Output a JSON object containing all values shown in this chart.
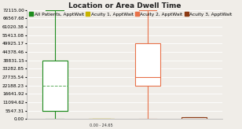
{
  "title": "Location or Area Dwell Time",
  "ylim": [
    0,
    72115.0
  ],
  "yticks": [
    0.0,
    5547.31,
    11094.62,
    16641.92,
    22188.23,
    27735.54,
    33282.85,
    38831.15,
    44378.46,
    49925.17,
    55413.08,
    61020.38,
    66567.68,
    72115.0
  ],
  "ytick_labels": [
    "0.00",
    "5547.31",
    "11094.62",
    "16641.92",
    "22188.23",
    "27735.54",
    "33282.85",
    "38831.15",
    "44378.46",
    "49925.17",
    "55413.08",
    "61020.38",
    "66567.68",
    "72115.00"
  ],
  "box_data": [
    {
      "label": "All Patients, ApptWait",
      "color": "#1e8c1e",
      "whislo": 0.0,
      "q1": 5547.31,
      "med": 5547.31,
      "q3": 38831.15,
      "whishi": 72115.0,
      "mean": 22188.23,
      "x": 1
    },
    {
      "label": "Acuity 1, ApptWait",
      "color": "#c8b400",
      "whislo": 0.0,
      "q1": 0.0,
      "med": 0.0,
      "q3": 0.0,
      "whishi": 24.65,
      "mean": 0.0,
      "x": 2
    },
    {
      "label": "Acuity 2, ApptWait",
      "color": "#e8724a",
      "whislo": 0.0,
      "q1": 22188.23,
      "med": 27735.54,
      "q3": 49925.17,
      "whishi": 72115.0,
      "mean": 27735.54,
      "x": 3
    },
    {
      "label": "Acuity 3, ApptWait",
      "color": "#8b3a14",
      "whislo": 0.0,
      "q1": 0.0,
      "med": 0.0,
      "q3": 1109.46,
      "whishi": 1109.46,
      "mean": 0.0,
      "x": 4
    }
  ],
  "background_color": "#f0ede8",
  "grid_color": "#ffffff",
  "title_fontsize": 6.5,
  "tick_fontsize": 4.2,
  "legend_fontsize": 4.2,
  "box_width": 0.55
}
